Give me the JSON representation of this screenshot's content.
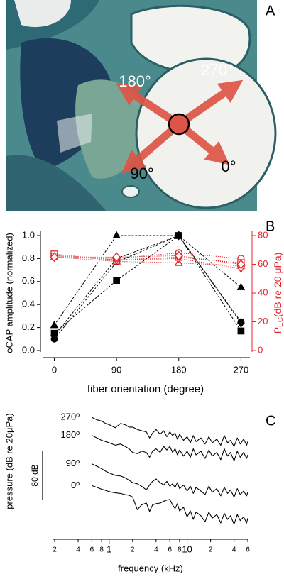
{
  "panel_labels": [
    "A",
    "B",
    "C"
  ],
  "image": {
    "labels": [
      "180°",
      "270°",
      "90°",
      "0°"
    ]
  },
  "chart_data": [
    {
      "type": "line",
      "x": [
        0,
        90,
        180,
        270
      ],
      "xlim": [
        -20,
        286
      ],
      "xticks": [
        0,
        90,
        180,
        270
      ],
      "ylim": [
        0,
        1
      ],
      "yticks": [
        {
          "value": 0,
          "label": "0.0"
        },
        {
          "value": 0.2,
          "label": "0.2"
        },
        {
          "value": 0.4,
          "label": "0.4"
        },
        {
          "value": 0.6,
          "label": "0.6"
        },
        {
          "value": 0.8,
          "label": "0.8"
        },
        {
          "value": 1,
          "label": "1.0"
        }
      ],
      "y2lim": [
        0,
        80
      ],
      "y2ticks": [
        0,
        20,
        40,
        60,
        80
      ],
      "y2color": "#e3262b",
      "xlabel": "fiber orientation (degree)",
      "ylabel": "oCAP amplitude (normalized)",
      "y2label": {
        "main": "P",
        "sub": "EC",
        "rest": "(dB re 20 μPa)"
      },
      "series": [
        {
          "color": "#000000",
          "marker": "triangle",
          "filled": true,
          "dash": "dashed",
          "values": [
            0.22,
            1.0,
            1.0,
            0.55
          ]
        },
        {
          "color": "#000000",
          "marker": "circle",
          "filled": true,
          "dash": "dashed",
          "values": [
            0.1,
            0.77,
            1.0,
            0.25
          ]
        },
        {
          "color": "#000000",
          "marker": "square",
          "filled": true,
          "dash": "dashed",
          "values": [
            0.15,
            0.61,
            1.0,
            0.17
          ]
        },
        {
          "color": "#000000",
          "marker": "diamond",
          "filled": true,
          "dash": "dashed",
          "values": [
            0.13,
            0.8,
            1.0,
            0.24
          ]
        },
        {
          "color": "#e3262b",
          "marker": "circle",
          "filled": false,
          "dash": "dotted",
          "axis": "y2",
          "values": [
            66,
            64,
            68,
            64
          ]
        },
        {
          "color": "#e3262b",
          "marker": "square",
          "filled": false,
          "dash": "dotted",
          "axis": "y2",
          "values": [
            67,
            63,
            65,
            61
          ]
        },
        {
          "color": "#e3262b",
          "marker": "triangle",
          "filled": false,
          "dash": "dotted",
          "axis": "y2",
          "values": [
            65,
            62,
            61,
            59
          ]
        },
        {
          "color": "#e3262b",
          "marker": "triangle-down",
          "filled": false,
          "dash": "dotted",
          "axis": "y2",
          "values": [
            66,
            63,
            64,
            57
          ]
        },
        {
          "color": "#e3262b",
          "marker": "diamond",
          "filled": false,
          "dash": "dotted",
          "axis": "y2",
          "values": [
            65,
            65,
            66,
            60
          ]
        }
      ]
    },
    {
      "type": "line",
      "log_x": true,
      "x": [
        0.6,
        0.7,
        0.8,
        0.9,
        1.0,
        1.2,
        1.4,
        1.6,
        1.8,
        2.0,
        2.3,
        2.6,
        3.0,
        3.3,
        3.6,
        4.0,
        4.5,
        5.0,
        5.5,
        6.0,
        6.5,
        7.0,
        7.5,
        8,
        9,
        10,
        11,
        12,
        13,
        15,
        17,
        19,
        21,
        24,
        27,
        30,
        33,
        36,
        40,
        44,
        48,
        53,
        58,
        60
      ],
      "xlim": [
        0.2,
        60
      ],
      "xticks": [
        {
          "value": 0.2,
          "label": "2"
        },
        {
          "value": 0.4,
          "label": "4"
        },
        {
          "value": 0.6,
          "label": "6"
        },
        {
          "value": 0.8,
          "label": "8"
        },
        1,
        {
          "value": 2,
          "label": "2"
        },
        {
          "value": 4,
          "label": "4"
        },
        {
          "value": 6,
          "label": "6"
        },
        {
          "value": 8,
          "label": "8"
        },
        10,
        {
          "value": 20,
          "label": "2"
        },
        {
          "value": 40,
          "label": "4"
        },
        {
          "value": 60,
          "label": "6"
        }
      ],
      "ylim": [
        40,
        260
      ],
      "xlabel": "frequency (kHz)",
      "ylabel": "pressure (dB re 20μPa)",
      "scale_bar": {
        "value": 80,
        "label": "80 dB"
      },
      "series": [
        {
          "name": "270º",
          "color": "#000000",
          "values": [
            242,
            238,
            236,
            232,
            230,
            225,
            232,
            230,
            226,
            226,
            222,
            220,
            218,
            208,
            216,
            222,
            214,
            220,
            210,
            218,
            212,
            216,
            206,
            214,
            204,
            210,
            200,
            212,
            202,
            208,
            198,
            210,
            200,
            206,
            196,
            212,
            200,
            204,
            194,
            208,
            198,
            206,
            196,
            202
          ]
        },
        {
          "name": "180º",
          "color": "#000000",
          "values": [
            212,
            208,
            204,
            202,
            200,
            196,
            198,
            194,
            190,
            184,
            182,
            186,
            184,
            176,
            186,
            190,
            184,
            194,
            188,
            194,
            184,
            190,
            180,
            188,
            178,
            186,
            176,
            190,
            180,
            186,
            174,
            188,
            178,
            184,
            172,
            190,
            178,
            184,
            170,
            186,
            176,
            184,
            174,
            180
          ]
        },
        {
          "name": "90º",
          "color": "#000000",
          "values": [
            165,
            161,
            157,
            153,
            150,
            146,
            145,
            142,
            138,
            134,
            132,
            128,
            122,
            130,
            136,
            140,
            134,
            130,
            136,
            128,
            132,
            126,
            134,
            124,
            130,
            120,
            128,
            116,
            126,
            120,
            114,
            128,
            118,
            124,
            112,
            126,
            116,
            122,
            110,
            124,
            114,
            120,
            112,
            118
          ]
        },
        {
          "name": "0º",
          "color": "#000000",
          "values": [
            129,
            126,
            123,
            121,
            119,
            117,
            116,
            114,
            113,
            110,
            89,
            97,
            100,
            86,
            97,
            99,
            100,
            103,
            105,
            106,
            97,
            91,
            99,
            87,
            93,
            77,
            87,
            73,
            85,
            79,
            69,
            85,
            75,
            81,
            67,
            83,
            73,
            79,
            65,
            81,
            71,
            77,
            67,
            75
          ]
        }
      ]
    }
  ]
}
